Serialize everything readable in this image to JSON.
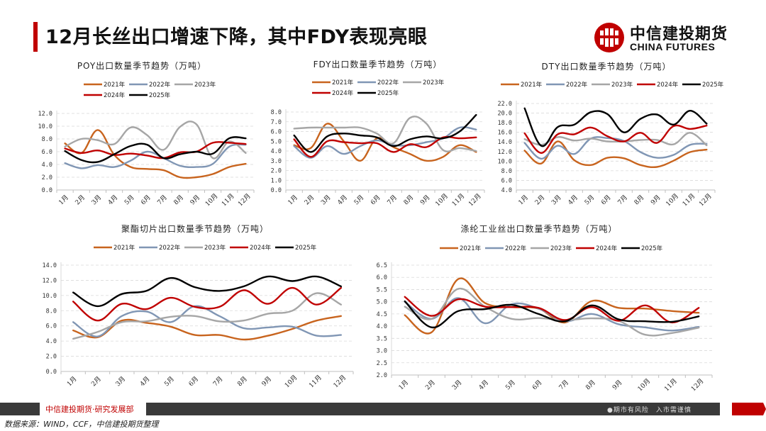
{
  "header": {
    "title": "12月长丝出口增速下降，其中FDY表现亮眼",
    "logo_cn": "中信建投期货",
    "logo_en": "CHINA FUTURES"
  },
  "footer": {
    "department": "中信建投期货·研究发展部",
    "risk_notice": "●期市有风险　入市需谨慎",
    "source": "数据来源：WIND，CCF，中信建投期货整理"
  },
  "colors": {
    "2021年": "#c8641e",
    "2022年": "#8096b4",
    "2023年": "#a6a6a6",
    "2024年": "#c00000",
    "2025年": "#000000",
    "accent": "#c00000"
  },
  "chart_data": [
    {
      "id": "poy",
      "type": "line",
      "title": "POY出口数量季节趋势（万吨）",
      "categories": [
        "1月",
        "2月",
        "3月",
        "4月",
        "5月",
        "6月",
        "7月",
        "8月",
        "9月",
        "10月",
        "11月",
        "12月"
      ],
      "ylim": [
        0,
        12
      ],
      "yticks": [
        "0.0",
        "2.0",
        "4.0",
        "6.0",
        "8.0",
        "10.0",
        "12.0"
      ],
      "grid": true,
      "legend": "top",
      "series": [
        {
          "name": "2021年",
          "values": [
            7.3,
            5.8,
            9.4,
            5.5,
            3.6,
            3.3,
            3.1,
            2.0,
            2.0,
            2.5,
            3.6,
            4.1
          ]
        },
        {
          "name": "2022年",
          "values": [
            4.2,
            3.4,
            3.9,
            3.6,
            4.6,
            6.0,
            5.0,
            3.8,
            3.6,
            4.1,
            6.8,
            7.1
          ]
        },
        {
          "name": "2023年",
          "values": [
            6.8,
            8.0,
            7.8,
            7.2,
            9.8,
            8.6,
            6.3,
            9.9,
            10.3,
            5.0,
            7.6,
            5.8
          ]
        },
        {
          "name": "2024年",
          "values": [
            6.5,
            5.8,
            6.2,
            5.5,
            5.7,
            5.4,
            5.0,
            5.9,
            6.0,
            7.4,
            7.4,
            7.2
          ]
        },
        {
          "name": "2025年",
          "values": [
            6.1,
            4.7,
            4.4,
            5.6,
            6.9,
            7.1,
            5.0,
            5.6,
            6.0,
            5.7,
            8.1,
            8.1
          ]
        }
      ]
    },
    {
      "id": "fdy",
      "type": "line",
      "title": "FDY出口数量季节趋势（万吨）",
      "categories": [
        "1月",
        "2月",
        "3月",
        "4月",
        "5月",
        "6月",
        "7月",
        "8月",
        "9月",
        "10月",
        "11月",
        "12月"
      ],
      "ylim": [
        0,
        8
      ],
      "yticks": [
        "0.0",
        "1.0",
        "2.0",
        "3.0",
        "4.0",
        "5.0",
        "6.0",
        "7.0",
        "8.0"
      ],
      "grid": true,
      "legend": "top",
      "series": [
        {
          "name": "2021年",
          "values": [
            4.6,
            4.3,
            6.8,
            5.0,
            3.0,
            5.3,
            4.4,
            3.7,
            3.0,
            3.4,
            4.6,
            3.9
          ]
        },
        {
          "name": "2022年",
          "values": [
            4.5,
            3.3,
            4.5,
            3.7,
            4.5,
            5.1,
            4.6,
            4.6,
            4.9,
            5.3,
            6.4,
            6.2
          ]
        },
        {
          "name": "2023年",
          "values": [
            6.3,
            6.4,
            6.4,
            6.4,
            6.4,
            5.8,
            4.8,
            7.4,
            6.8,
            4.1,
            4.3,
            4.0
          ]
        },
        {
          "name": "2024年",
          "values": [
            5.2,
            3.4,
            5.0,
            4.9,
            4.8,
            4.8,
            3.9,
            4.7,
            4.4,
            5.4,
            5.3,
            5.4
          ]
        },
        {
          "name": "2025年",
          "values": [
            5.6,
            3.9,
            5.5,
            5.8,
            5.6,
            5.4,
            4.5,
            5.2,
            5.5,
            5.3,
            6.0,
            7.7
          ]
        }
      ]
    },
    {
      "id": "dty",
      "type": "line",
      "title": "DTY出口数量季节趋势（万吨）",
      "categories": [
        "1月",
        "2月",
        "3月",
        "4月",
        "5月",
        "6月",
        "7月",
        "8月",
        "9月",
        "10月",
        "11月",
        "12月"
      ],
      "ylim": [
        4,
        22
      ],
      "yticks": [
        "4.0",
        "6.0",
        "8.0",
        "10.0",
        "12.0",
        "14.0",
        "16.0",
        "18.0",
        "20.0",
        "22.0"
      ],
      "grid": true,
      "legend": "top",
      "series": [
        {
          "name": "2021年",
          "values": [
            12.2,
            9.5,
            14.1,
            10.2,
            9.2,
            10.7,
            10.6,
            9.2,
            8.8,
            10.1,
            11.9,
            12.4
          ]
        },
        {
          "name": "2022年",
          "values": [
            13.8,
            10.5,
            13.2,
            11.5,
            14.7,
            14.8,
            14.2,
            11.9,
            10.7,
            11.3,
            13.4,
            13.6
          ]
        },
        {
          "name": "2023年",
          "values": [
            14.6,
            13.4,
            15.0,
            14.3,
            14.7,
            14.1,
            14.1,
            14.4,
            14.4,
            13.5,
            15.9,
            13.3
          ]
        },
        {
          "name": "2024年",
          "values": [
            15.8,
            11.7,
            15.6,
            15.6,
            17.0,
            15.2,
            14.1,
            15.9,
            13.8,
            17.3,
            16.7,
            17.4
          ]
        },
        {
          "name": "2025年",
          "values": [
            21.0,
            13.2,
            17.1,
            17.6,
            20.2,
            19.8,
            16.0,
            18.8,
            19.7,
            17.6,
            20.5,
            17.8
          ]
        }
      ]
    },
    {
      "id": "chip",
      "type": "line",
      "title": "聚酯切片出口数量季节趋势（万吨）",
      "categories": [
        "1月",
        "2月",
        "3月",
        "4月",
        "5月",
        "6月",
        "7月",
        "8月",
        "9月",
        "10月",
        "11月",
        "12月"
      ],
      "ylim": [
        0,
        14
      ],
      "yticks": [
        "0.0",
        "2.0",
        "4.0",
        "6.0",
        "8.0",
        "10.0",
        "12.0",
        "14.0"
      ],
      "grid": true,
      "legend": "top",
      "series": [
        {
          "name": "2021年",
          "values": [
            5.4,
            4.5,
            6.7,
            6.4,
            5.9,
            4.8,
            4.8,
            4.2,
            4.7,
            5.6,
            6.7,
            7.3
          ]
        },
        {
          "name": "2022年",
          "values": [
            6.5,
            4.6,
            7.3,
            7.9,
            6.5,
            8.6,
            7.3,
            5.7,
            5.8,
            5.9,
            4.7,
            4.8
          ]
        },
        {
          "name": "2023年",
          "values": [
            4.3,
            5.2,
            6.5,
            6.6,
            7.2,
            7.3,
            6.6,
            6.7,
            7.6,
            8.0,
            10.3,
            8.8
          ]
        },
        {
          "name": "2024年",
          "values": [
            9.2,
            6.7,
            8.9,
            8.2,
            9.7,
            8.5,
            8.5,
            10.7,
            8.9,
            11.0,
            8.8,
            11.0
          ]
        },
        {
          "name": "2025年",
          "values": [
            10.4,
            8.6,
            10.2,
            10.6,
            12.3,
            11.1,
            10.6,
            11.2,
            12.5,
            11.9,
            12.5,
            11.2
          ]
        }
      ]
    },
    {
      "id": "industrial",
      "type": "line",
      "title": "涤纶工业丝出口数量季节趋势（万吨）",
      "categories": [
        "1月",
        "2月",
        "3月",
        "4月",
        "5月",
        "6月",
        "7月",
        "8月",
        "9月",
        "10月",
        "11月",
        "12月"
      ],
      "ylim": [
        2,
        6.5
      ],
      "yticks": [
        "2.0",
        "2.5",
        "3.0",
        "3.5",
        "4.0",
        "4.5",
        "5.0",
        "5.5",
        "6.0",
        "6.5"
      ],
      "grid": true,
      "legend": "top",
      "series": [
        {
          "name": "2021年",
          "values": [
            4.45,
            3.75,
            5.93,
            4.95,
            4.78,
            4.72,
            4.15,
            5.03,
            4.75,
            4.72,
            4.62,
            4.55
          ]
        },
        {
          "name": "2022年",
          "values": [
            5.0,
            4.3,
            5.15,
            4.12,
            4.9,
            4.72,
            4.2,
            4.5,
            4.08,
            3.95,
            3.82,
            3.97
          ]
        },
        {
          "name": "2023年",
          "values": [
            4.8,
            4.3,
            5.53,
            4.8,
            4.3,
            4.33,
            4.25,
            4.32,
            4.22,
            3.65,
            3.72,
            3.94
          ]
        },
        {
          "name": "2024年",
          "values": [
            5.2,
            4.42,
            5.1,
            4.8,
            4.78,
            4.75,
            4.25,
            4.78,
            4.22,
            4.85,
            4.15,
            4.75
          ]
        },
        {
          "name": "2025年",
          "values": [
            5.02,
            3.95,
            4.62,
            4.7,
            4.87,
            4.5,
            4.2,
            4.85,
            4.28,
            4.2,
            4.18,
            4.4
          ]
        }
      ]
    }
  ]
}
